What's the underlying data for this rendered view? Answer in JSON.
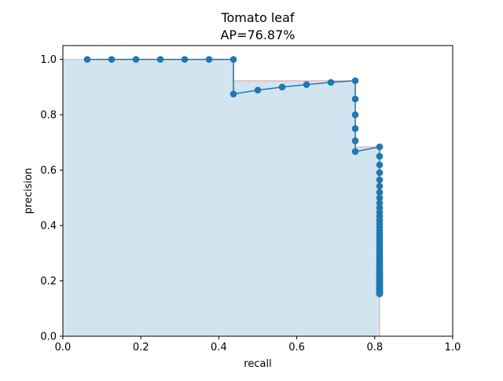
{
  "chart_data": {
    "type": "line",
    "title": "Tomato leaf",
    "subtitle": "AP=76.87%",
    "xlabel": "recall",
    "ylabel": "precision",
    "xlim": [
      0.0,
      1.0
    ],
    "ylim": [
      0.0,
      1.05
    ],
    "xticks": [
      "0.0",
      "0.2",
      "0.4",
      "0.6",
      "0.8",
      "1.0"
    ],
    "yticks": [
      "0.0",
      "0.2",
      "0.4",
      "0.6",
      "0.8",
      "1.0"
    ],
    "grid": false,
    "legend": "none",
    "colors": {
      "line": "#1f77b4",
      "fill": "#1f77b4",
      "envelope": "#d62728"
    },
    "series": [
      {
        "points": [
          [
            0.0625,
            1.0
          ],
          [
            0.125,
            1.0
          ],
          [
            0.1875,
            1.0
          ],
          [
            0.25,
            1.0
          ],
          [
            0.3125,
            1.0
          ],
          [
            0.375,
            1.0
          ],
          [
            0.4375,
            1.0
          ],
          [
            0.4375,
            0.875
          ],
          [
            0.5,
            0.889
          ],
          [
            0.5625,
            0.9
          ],
          [
            0.625,
            0.909
          ],
          [
            0.6875,
            0.917
          ],
          [
            0.75,
            0.923
          ],
          [
            0.75,
            0.857
          ],
          [
            0.75,
            0.8
          ],
          [
            0.75,
            0.75
          ],
          [
            0.75,
            0.706
          ],
          [
            0.75,
            0.667
          ],
          [
            0.8125,
            0.684
          ],
          [
            0.8125,
            0.65
          ],
          [
            0.8125,
            0.619
          ],
          [
            0.8125,
            0.591
          ],
          [
            0.8125,
            0.565
          ],
          [
            0.8125,
            0.542
          ],
          [
            0.8125,
            0.52
          ],
          [
            0.8125,
            0.5
          ],
          [
            0.8125,
            0.481
          ],
          [
            0.8125,
            0.464
          ],
          [
            0.8125,
            0.448
          ],
          [
            0.8125,
            0.433
          ],
          [
            0.8125,
            0.419
          ],
          [
            0.8125,
            0.406
          ],
          [
            0.8125,
            0.394
          ],
          [
            0.8125,
            0.382
          ],
          [
            0.8125,
            0.371
          ],
          [
            0.8125,
            0.361
          ],
          [
            0.8125,
            0.351
          ],
          [
            0.8125,
            0.342
          ],
          [
            0.8125,
            0.333
          ],
          [
            0.8125,
            0.325
          ],
          [
            0.8125,
            0.317
          ],
          [
            0.8125,
            0.31
          ],
          [
            0.8125,
            0.302
          ],
          [
            0.8125,
            0.295
          ],
          [
            0.8125,
            0.289
          ],
          [
            0.8125,
            0.283
          ],
          [
            0.8125,
            0.277
          ],
          [
            0.8125,
            0.271
          ],
          [
            0.8125,
            0.265
          ],
          [
            0.8125,
            0.26
          ],
          [
            0.8125,
            0.255
          ],
          [
            0.8125,
            0.25
          ],
          [
            0.8125,
            0.245
          ],
          [
            0.8125,
            0.241
          ],
          [
            0.8125,
            0.236
          ],
          [
            0.8125,
            0.232
          ],
          [
            0.8125,
            0.228
          ],
          [
            0.8125,
            0.224
          ],
          [
            0.8125,
            0.22
          ],
          [
            0.8125,
            0.217
          ],
          [
            0.8125,
            0.213
          ],
          [
            0.8125,
            0.21
          ],
          [
            0.8125,
            0.206
          ],
          [
            0.8125,
            0.203
          ],
          [
            0.8125,
            0.2
          ],
          [
            0.8125,
            0.197
          ],
          [
            0.8125,
            0.194
          ],
          [
            0.8125,
            0.191
          ],
          [
            0.8125,
            0.188
          ],
          [
            0.8125,
            0.186
          ],
          [
            0.8125,
            0.183
          ],
          [
            0.8125,
            0.181
          ],
          [
            0.8125,
            0.178
          ],
          [
            0.8125,
            0.176
          ],
          [
            0.8125,
            0.173
          ],
          [
            0.8125,
            0.171
          ],
          [
            0.8125,
            0.169
          ],
          [
            0.8125,
            0.167
          ],
          [
            0.8125,
            0.165
          ],
          [
            0.8125,
            0.163
          ],
          [
            0.8125,
            0.161
          ],
          [
            0.8125,
            0.159
          ],
          [
            0.8125,
            0.157
          ],
          [
            0.8125,
            0.155
          ],
          [
            0.8125,
            0.153
          ]
        ]
      }
    ],
    "interpolated_envelope": [
      [
        0.0,
        1.0
      ],
      [
        0.4375,
        1.0
      ],
      [
        0.4375,
        0.923
      ],
      [
        0.75,
        0.923
      ],
      [
        0.75,
        0.684
      ],
      [
        0.8125,
        0.684
      ],
      [
        0.8125,
        0.0
      ]
    ]
  }
}
